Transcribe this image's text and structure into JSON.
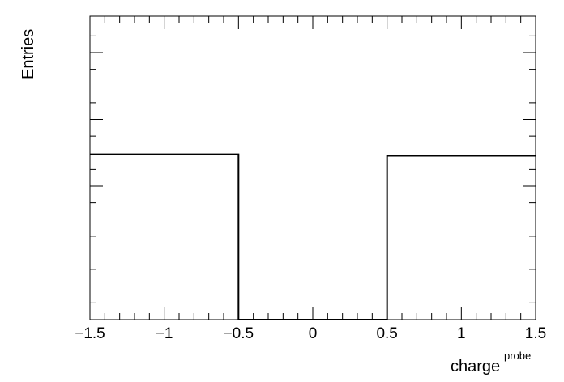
{
  "chart_data": {
    "type": "histogram",
    "title": "",
    "xlabel": "charge",
    "xlabel_superscript": "probe",
    "ylabel": "Entries",
    "xlim": [
      -1.5,
      1.5
    ],
    "ylim": [
      0,
      1.0
    ],
    "x_ticks": [
      -1.5,
      -1,
      -0.5,
      0,
      0.5,
      1,
      1.5
    ],
    "x_tick_labels": [
      "−1.5",
      "−1",
      "−0.5",
      "0",
      "0.5",
      "1",
      "1.5"
    ],
    "y_tick_labels_shown": false,
    "bins": [
      {
        "low": -1.5,
        "high": -0.5,
        "value": 0.545
      },
      {
        "low": -0.5,
        "high": 0.5,
        "value": 0.0
      },
      {
        "low": 0.5,
        "high": 1.5,
        "value": 0.54
      }
    ],
    "grid": false,
    "legend": "none"
  }
}
